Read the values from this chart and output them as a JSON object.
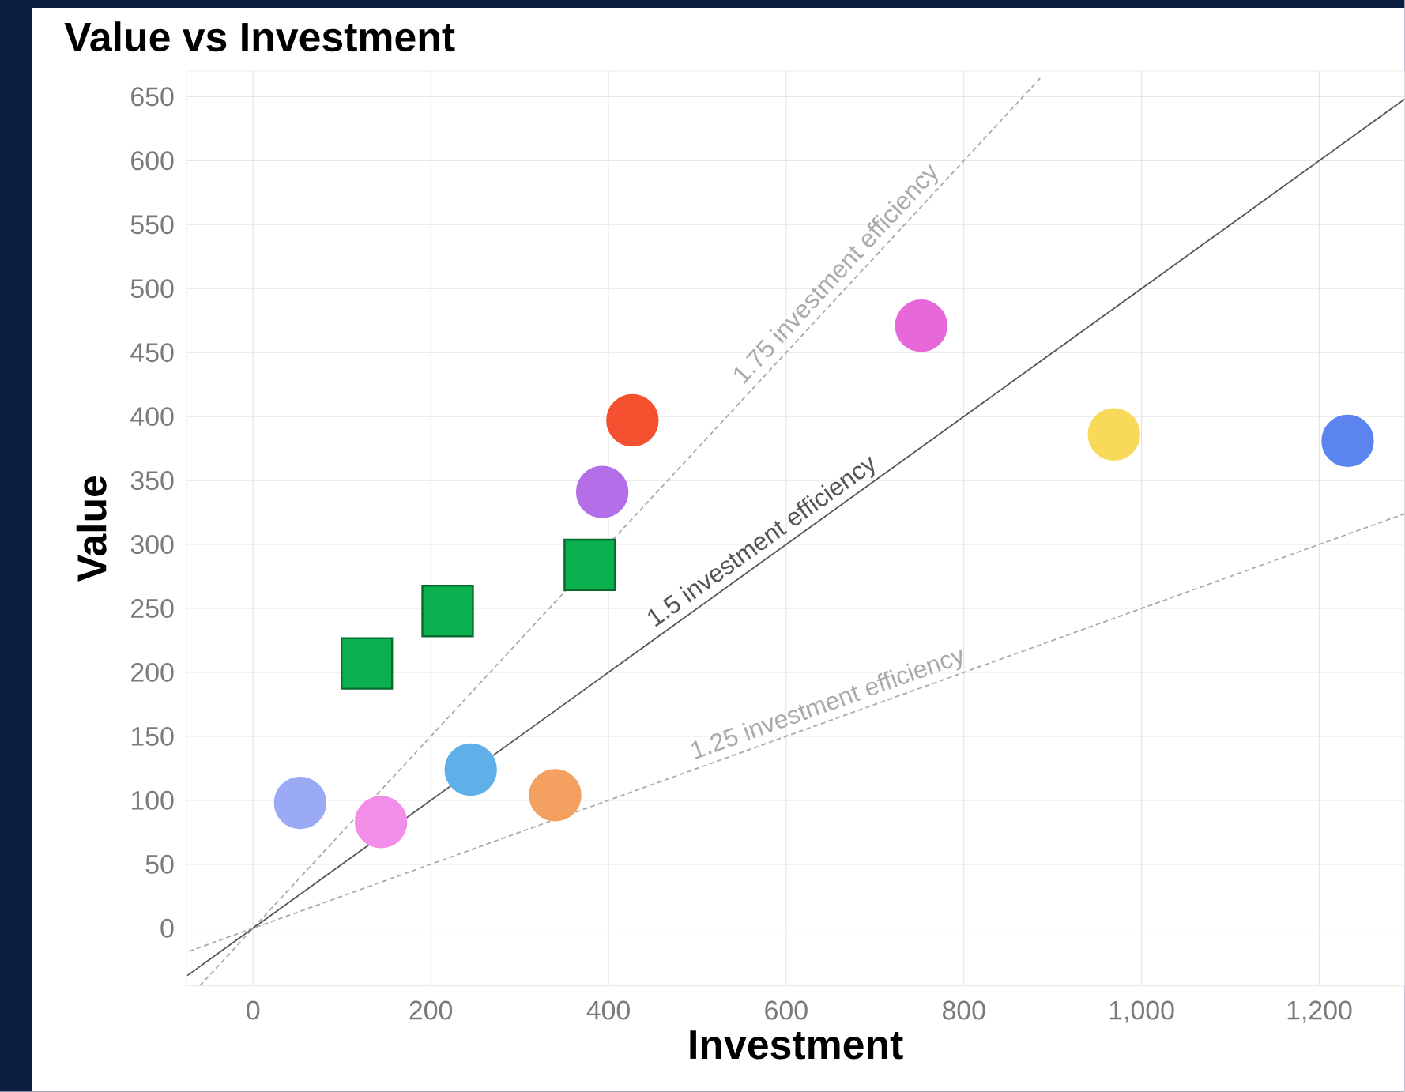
{
  "chart_data": {
    "type": "scatter",
    "title": "Value vs Investment",
    "xlabel": "Investment",
    "ylabel": "Value",
    "xlim": [
      -75,
      1296
    ],
    "ylim": [
      -45,
      670
    ],
    "xticks": [
      0,
      200,
      400,
      600,
      800,
      {
        "value": 1000,
        "label": "1,000"
      },
      {
        "value": 1200,
        "label": "1,200"
      }
    ],
    "yticks": [
      0,
      50,
      100,
      150,
      200,
      250,
      300,
      350,
      400,
      450,
      500,
      550,
      600,
      650
    ],
    "grid": true,
    "series": [
      {
        "type": "line",
        "name": "1.75 investment efficiency",
        "color": "#aaaaaa",
        "line_style": "dashed",
        "x": [
          -60,
          888
        ],
        "values": [
          -45,
          666
        ]
      },
      {
        "type": "line",
        "name": "1.5 investment efficiency",
        "color": "#555555",
        "line_style": "solid",
        "x": [
          -74,
          1296
        ],
        "values": [
          -37,
          648
        ]
      },
      {
        "type": "line",
        "name": "1.25 investment efficiency",
        "color": "#aaaaaa",
        "line_style": "dashed",
        "x": [
          -72,
          1296
        ],
        "values": [
          -18,
          324
        ]
      },
      {
        "marker": "circle",
        "x": [
          53,
          144,
          245,
          340,
          393,
          427,
          752,
          969,
          1232
        ],
        "values": [
          98,
          83,
          124,
          104,
          341,
          397,
          471,
          386,
          381
        ],
        "colors": [
          "#9aaaf5",
          "#f28ee8",
          "#5fb0e8",
          "#f3a060",
          "#b46ee8",
          "#f5502f",
          "#e668d9",
          "#f8d95a",
          "#5b84ef"
        ]
      },
      {
        "marker": "square",
        "color": "#0bb04f",
        "x": [
          128,
          219,
          379
        ],
        "values": [
          207,
          248,
          284
        ]
      }
    ]
  }
}
